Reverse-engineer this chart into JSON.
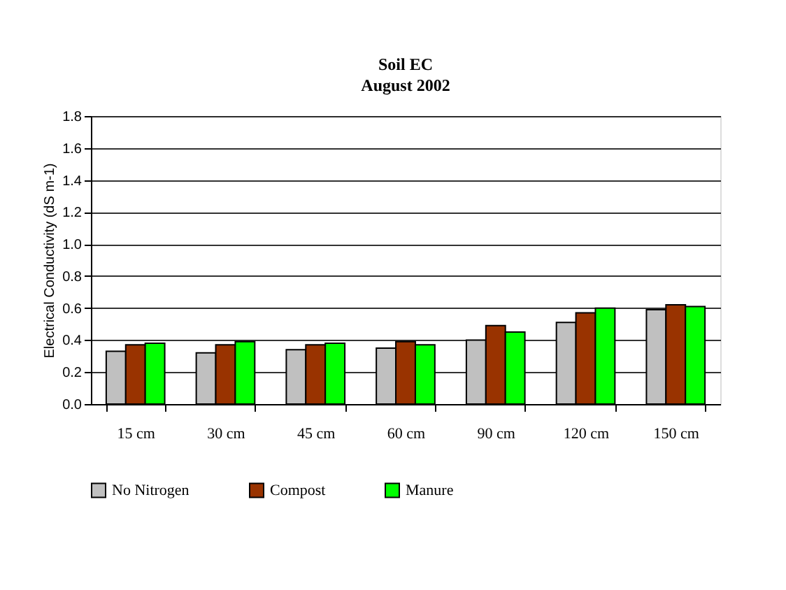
{
  "chart_data": {
    "type": "bar",
    "title": "Soil EC",
    "subtitle": "August 2002",
    "ylabel": "Electrical Conductivity (dS m-1)",
    "categories": [
      "15 cm",
      "30 cm",
      "45 cm",
      "60 cm",
      "90 cm",
      "120 cm",
      "150 cm"
    ],
    "series": [
      {
        "name": "No Nitrogen",
        "color": "#c0c0c0",
        "values": [
          0.33,
          0.32,
          0.34,
          0.35,
          0.4,
          0.51,
          0.59
        ]
      },
      {
        "name": "Compost",
        "color": "#993300",
        "values": [
          0.37,
          0.37,
          0.37,
          0.39,
          0.49,
          0.57,
          0.62
        ]
      },
      {
        "name": "Manure",
        "color": "#00ff00",
        "values": [
          0.38,
          0.39,
          0.38,
          0.37,
          0.45,
          0.6,
          0.61
        ]
      }
    ],
    "ylim": [
      0,
      1.8
    ],
    "yticks": [
      {
        "value": 0,
        "label": "0.0"
      },
      0.2,
      0.4,
      0.6,
      0.8,
      {
        "value": 1,
        "label": "1.0"
      },
      1.2,
      1.4,
      1.6,
      1.8
    ],
    "grid": "y",
    "legend": "bottom"
  }
}
